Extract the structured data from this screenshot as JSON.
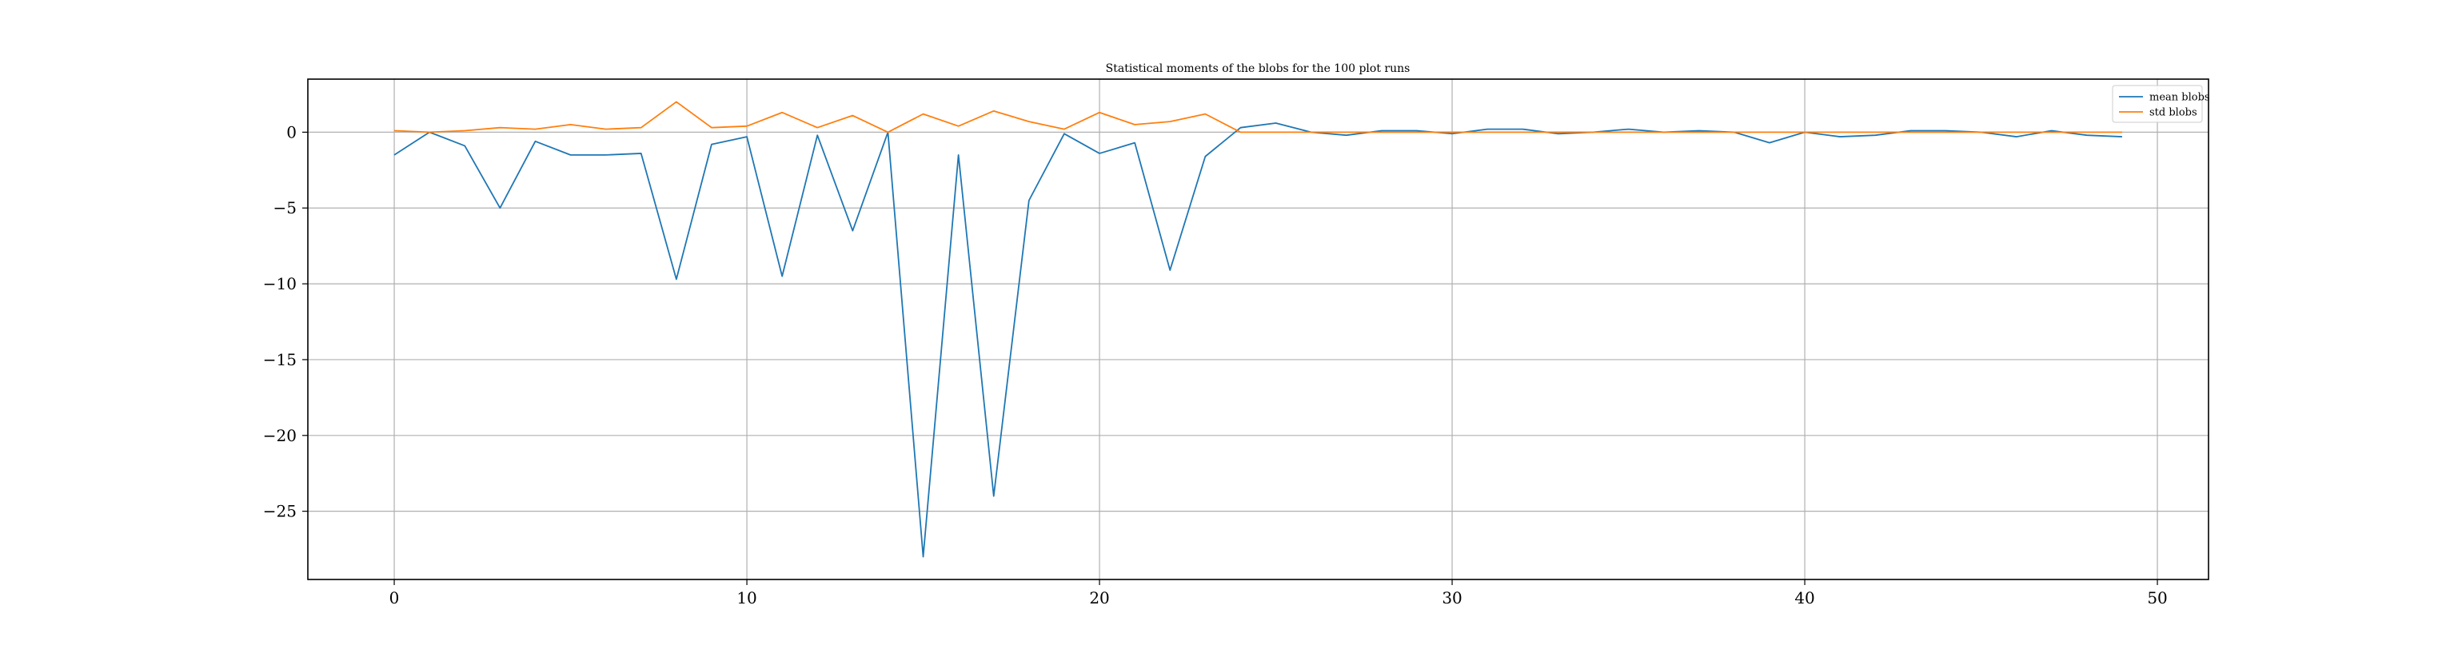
{
  "chart_data": {
    "type": "line",
    "title": "Statistical moments of the blobs for the 100 plot runs",
    "xlabel": "",
    "ylabel": "",
    "xlim": [
      -2.45,
      51.45
    ],
    "ylim": [
      -29.5,
      3.5
    ],
    "xticks": [
      0,
      10,
      20,
      30,
      40,
      50
    ],
    "yticks": [
      0,
      -5,
      -10,
      -15,
      -20,
      -25
    ],
    "ytick_labels": [
      "0",
      "−5",
      "−10",
      "−15",
      "−20",
      "−25"
    ],
    "grid": true,
    "legend_placement": "top-right",
    "x": [
      0,
      1,
      2,
      3,
      4,
      5,
      6,
      7,
      8,
      9,
      10,
      11,
      12,
      13,
      14,
      15,
      16,
      17,
      18,
      19,
      20,
      21,
      22,
      23,
      24,
      25,
      26,
      27,
      28,
      29,
      30,
      31,
      32,
      33,
      34,
      35,
      36,
      37,
      38,
      39,
      40,
      41,
      42,
      43,
      44,
      45,
      46,
      47,
      48,
      49
    ],
    "series": [
      {
        "name": "mean blobs",
        "color": "#1f77b4",
        "values": [
          -1.5,
          0,
          -0.9,
          -5.0,
          -0.6,
          -1.5,
          -1.5,
          -1.4,
          -9.7,
          -0.8,
          -0.3,
          -9.5,
          -0.2,
          -6.5,
          0,
          -28.0,
          -1.5,
          -24.0,
          -4.5,
          -0.1,
          -1.4,
          -0.7,
          -9.1,
          -1.6,
          0.3,
          0.6,
          0.0,
          -0.2,
          0.1,
          0.1,
          -0.1,
          0.2,
          0.2,
          -0.1,
          0.0,
          0.2,
          0.0,
          0.1,
          0.0,
          -0.7,
          0.0,
          -0.3,
          -0.2,
          0.1,
          0.1,
          0.0,
          -0.3,
          0.1,
          -0.2,
          -0.3
        ]
      },
      {
        "name": "std blobs",
        "color": "#ff7f0e",
        "values": [
          0.1,
          0.0,
          0.1,
          0.3,
          0.2,
          0.5,
          0.2,
          0.3,
          2.0,
          0.3,
          0.4,
          1.3,
          0.3,
          1.1,
          0.0,
          1.2,
          0.4,
          1.4,
          0.7,
          0.2,
          1.3,
          0.5,
          0.7,
          1.2,
          0.0,
          0.0,
          0.0,
          0.0,
          0.0,
          0.0,
          0.0,
          0.0,
          0.0,
          0.0,
          0.0,
          0.0,
          0.0,
          0.0,
          0.0,
          0.0,
          0.0,
          0.0,
          0.0,
          0.0,
          0.0,
          0.0,
          0.0,
          0.0,
          0.0,
          0.0
        ]
      }
    ]
  }
}
